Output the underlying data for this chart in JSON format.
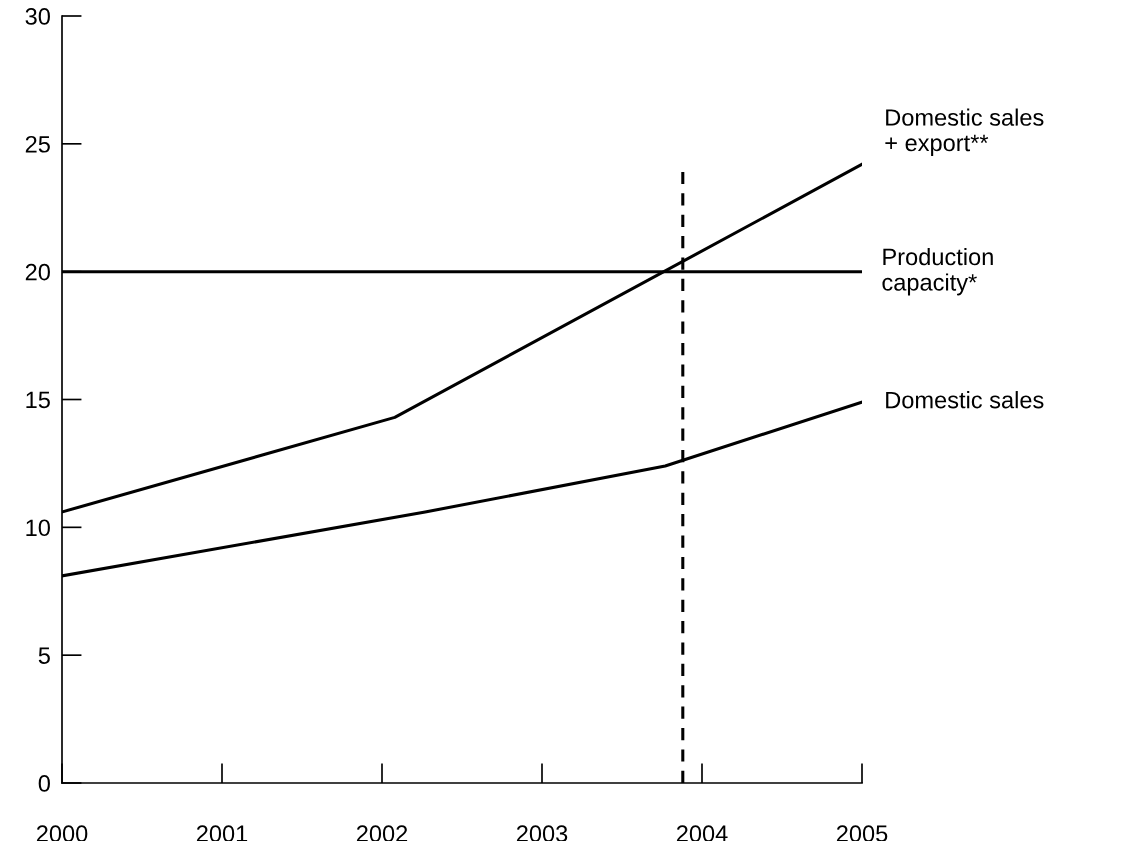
{
  "chart_data": {
    "type": "line",
    "xlim": [
      2000,
      2005
    ],
    "xticks": [
      2000,
      2001,
      2002,
      2003,
      2004,
      2005
    ],
    "ylim": [
      0,
      30
    ],
    "yticks": [
      0,
      5,
      10,
      15,
      20,
      25,
      30
    ],
    "grid": false,
    "legend": false,
    "marker": "none",
    "line_style": "solid",
    "series": [
      {
        "name": "Domestic sales\n+ export**",
        "color": "#000000",
        "x": [
          2000,
          2002.08,
          2005
        ],
        "values": [
          10.6,
          14.3,
          24.2
        ]
      },
      {
        "name": "Domestic sales",
        "color": "#000000",
        "x": [
          2000,
          2002.27,
          2003.77,
          2005
        ],
        "values": [
          8.1,
          10.6,
          12.4,
          14.9
        ]
      }
    ],
    "ref_lines": [
      {
        "axis": "y",
        "value": 20,
        "label": "Production\ncapacity*",
        "color": "#000000",
        "line_style": "solid"
      },
      {
        "axis": "x",
        "value": 2003.88,
        "color": "#000000",
        "line_style": "dashed"
      }
    ]
  }
}
